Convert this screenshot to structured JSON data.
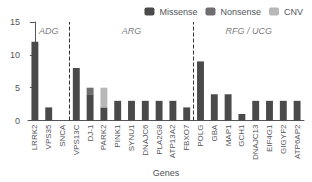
{
  "chart_data": {
    "type": "bar",
    "stacked": true,
    "categories": [
      "LRRK2",
      "VPS35",
      "SNCA",
      "VPS13C",
      "DJ-1",
      "PARK2",
      "PINK1",
      "SYNU1",
      "DNAJC6",
      "PLA2G8",
      "ATP13A2",
      "FBXO7",
      "POLG",
      "GBA",
      "MAP1",
      "GCH1",
      "DNAJC13",
      "EIF4G1",
      "GIGYF2",
      "ATP6AP2"
    ],
    "series": [
      {
        "name": "Missense",
        "color": "#4a4a4a",
        "values": [
          12,
          2,
          0,
          8,
          4,
          2,
          3,
          3,
          3,
          3,
          3,
          2,
          9,
          4,
          4,
          1,
          3,
          3,
          3,
          3
        ]
      },
      {
        "name": "Nonsense",
        "color": "#6e6e6e",
        "values": [
          0,
          0,
          0,
          0,
          1,
          0,
          0,
          0,
          0,
          0,
          0,
          0,
          0,
          0,
          0,
          0,
          0,
          0,
          0,
          0
        ]
      },
      {
        "name": "CNV",
        "color": "#b8b8b8",
        "values": [
          0,
          0,
          0,
          0,
          0,
          3,
          0,
          0,
          0,
          0,
          0,
          0,
          0,
          0,
          0,
          0,
          0,
          0,
          0,
          0
        ]
      }
    ],
    "xlabel": "Genes",
    "ylim": [
      0,
      15
    ],
    "yticks": [
      0,
      5,
      10,
      15
    ],
    "grid": false,
    "legend": "upper right",
    "vlines": [
      2.5,
      11.5
    ],
    "annotations": [
      {
        "text": "ADG",
        "x": 1.0,
        "y": 14.6
      },
      {
        "text": "ARG",
        "x": 7.0,
        "y": 14.6
      },
      {
        "text": "RFG / UCG",
        "x": 15.5,
        "y": 14.6
      }
    ]
  }
}
